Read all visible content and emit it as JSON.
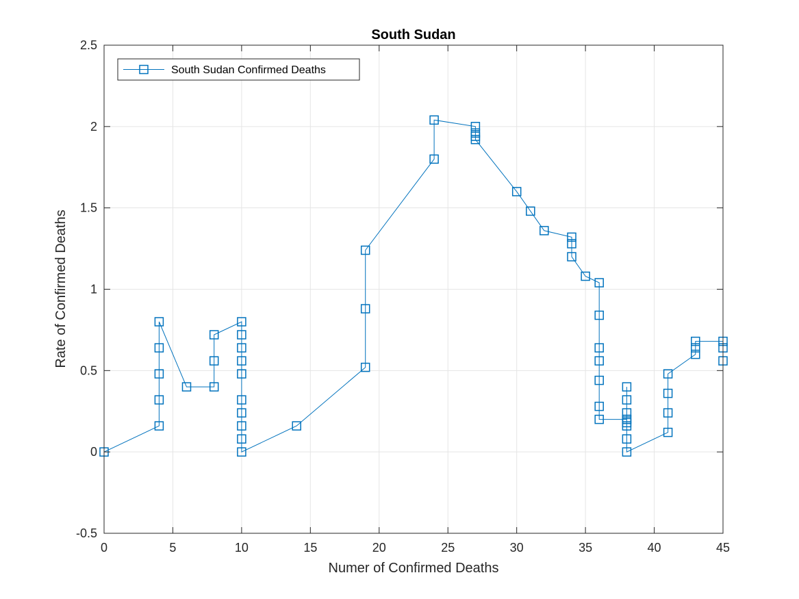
{
  "chart_data": {
    "type": "line",
    "title": "South Sudan",
    "xlabel": "Numer of Confirmed Deaths",
    "ylabel": "Rate of Confirmed Deaths",
    "xlim": [
      0,
      45
    ],
    "ylim": [
      -0.5,
      2.5
    ],
    "xticks": [
      0,
      5,
      10,
      15,
      20,
      25,
      30,
      35,
      40,
      45
    ],
    "yticks": [
      -0.5,
      0,
      0.5,
      1,
      1.5,
      2,
      2.5
    ],
    "xtick_labels": [
      "0",
      "5",
      "10",
      "15",
      "20",
      "25",
      "30",
      "35",
      "40",
      "45"
    ],
    "ytick_labels": [
      "-0.5",
      "0",
      "0.5",
      "1",
      "1.5",
      "2",
      "2.5"
    ],
    "grid": true,
    "legend_position": "top-left",
    "series_color": "#0072BD",
    "marker": "square",
    "series": [
      {
        "name": "South Sudan Confirmed Deaths",
        "x": [
          0,
          4,
          4,
          4,
          4,
          4,
          6,
          8,
          8,
          8,
          10,
          10,
          10,
          10,
          10,
          10,
          10,
          10,
          10,
          10,
          14,
          19,
          19,
          19,
          24,
          24,
          27,
          27,
          27,
          27,
          30,
          31,
          32,
          34,
          34,
          34,
          35,
          36,
          36,
          36,
          36,
          36,
          36,
          36,
          38,
          38,
          38,
          38,
          38,
          38,
          38,
          38,
          38,
          41,
          41,
          41,
          41,
          43,
          43,
          43,
          45,
          45,
          45
        ],
        "y": [
          0,
          0.16,
          0.32,
          0.48,
          0.64,
          0.8,
          0.4,
          0.4,
          0.56,
          0.72,
          0.8,
          0.72,
          0.64,
          0.56,
          0.48,
          0.32,
          0.24,
          0.16,
          0.08,
          0,
          0.16,
          0.52,
          0.88,
          1.24,
          1.8,
          2.04,
          2.0,
          1.96,
          1.94,
          1.92,
          1.6,
          1.48,
          1.36,
          1.32,
          1.28,
          1.2,
          1.08,
          1.04,
          0.84,
          0.64,
          0.56,
          0.44,
          0.28,
          0.2,
          0.2,
          0.4,
          0.32,
          0.24,
          0.2,
          0.18,
          0.16,
          0.08,
          0,
          0.12,
          0.24,
          0.36,
          0.48,
          0.6,
          0.64,
          0.68,
          0.68,
          0.64,
          0.56
        ]
      }
    ]
  }
}
